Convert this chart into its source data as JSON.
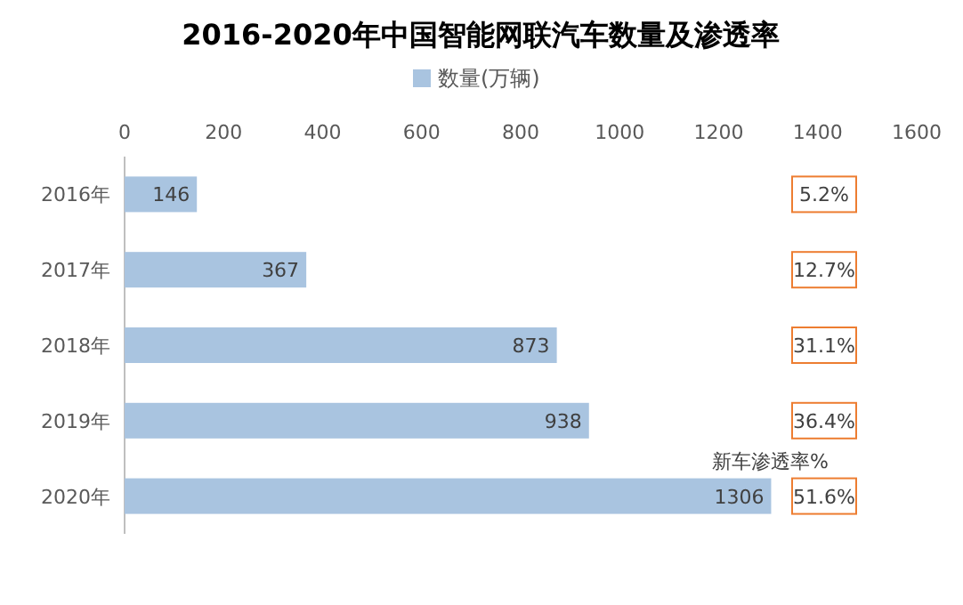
{
  "chart_data": {
    "type": "bar",
    "orientation": "horizontal",
    "title": "2016-2020年中国智能网联汽车数量及渗透率",
    "categories": [
      "2016年",
      "2017年",
      "2018年",
      "2019年",
      "2020年"
    ],
    "series": [
      {
        "name": "数量(万辆)",
        "color": "#a9c4e0",
        "values": [
          146,
          367,
          873,
          938,
          1306
        ]
      }
    ],
    "xlim": [
      0,
      1600
    ],
    "xticks": [
      0,
      200,
      400,
      600,
      800,
      1000,
      1200,
      1400,
      1600
    ],
    "data_labels": true,
    "legend": "top",
    "grid": false,
    "annotations": [
      "新车渗透率%",
      "5.2%",
      "12.7%",
      "31.1%",
      "36.4%",
      "51.6%"
    ]
  }
}
